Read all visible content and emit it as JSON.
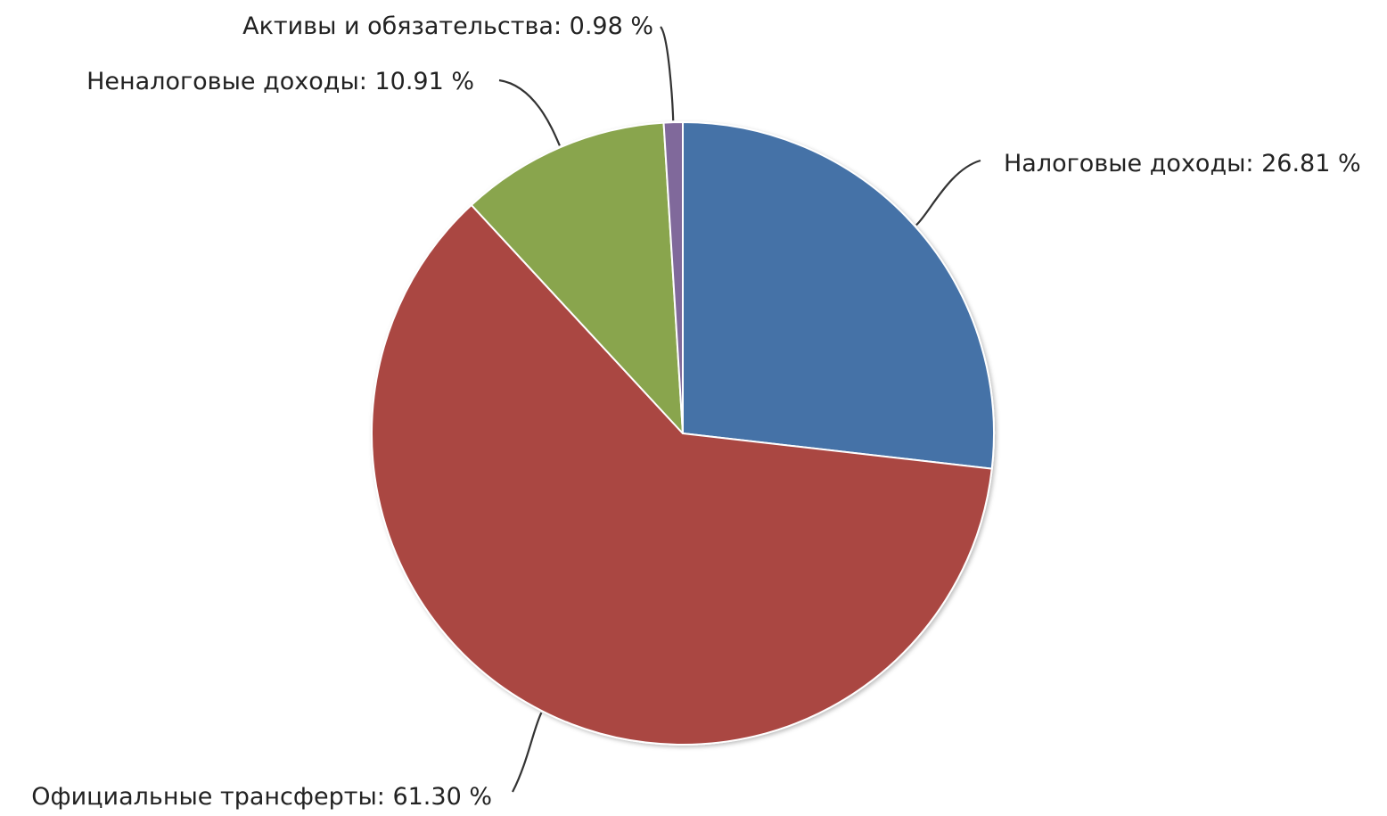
{
  "chart_data": {
    "type": "pie",
    "title": "",
    "legend": "none",
    "series": [
      {
        "categories": [
          "Налоговые доходы",
          "Официальные трансферты",
          "Неналоговые доходы",
          "Активы и обязательства"
        ],
        "values": [
          26.81,
          61.3,
          10.91,
          0.98
        ],
        "colors": [
          "#4572a7",
          "#aa4643",
          "#89a54e",
          "#80699b"
        ]
      }
    ],
    "labels": [
      "Налоговые доходы: 26.81 %",
      "Официальные трансферты: 61.30 %",
      "Неналоговые доходы: 10.91 %",
      "Активы и обязательства: 0.98 %"
    ],
    "start_angle": "12 o'clock",
    "direction": "clockwise"
  }
}
